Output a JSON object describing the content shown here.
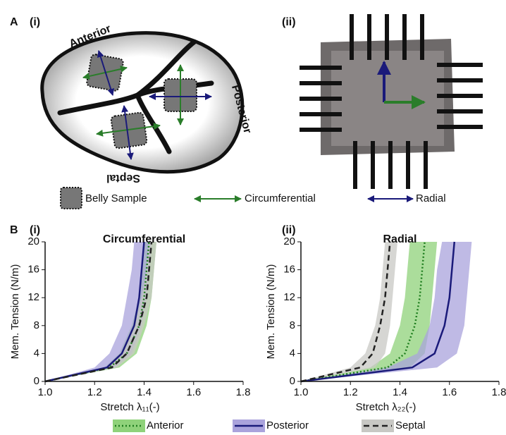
{
  "figure": {
    "panel_a": "A",
    "panel_b": "B",
    "sub_i": "(i)",
    "sub_ii": "(ii)",
    "anterior": "Anterior",
    "posterior": "Posterior",
    "septal": "Septal",
    "legend_sample": "Belly Sample",
    "legend_circ": "Circumferential",
    "legend_radial": "Radial"
  },
  "chart_data": [
    {
      "type": "line",
      "panel": "(i)",
      "title": "Circumferential",
      "xlabel": "Stretch λ₁₁(-)",
      "ylabel": "Mem. Tension (N/m)",
      "xlim": [
        1.0,
        1.8
      ],
      "xticks": [
        {
          "value": 1.0,
          "label": "1.0"
        },
        1.2,
        1.4,
        1.6,
        {
          "value": 1.8,
          "label": "1.8"
        }
      ],
      "ylim": [
        0,
        20
      ],
      "yticks": [
        0,
        4,
        8,
        12,
        16,
        20
      ],
      "series": [
        {
          "name": "Anterior",
          "color": "#1e7d1e",
          "band_color": "#8fd27a",
          "dash": "dotted",
          "values": [
            0,
            2,
            4,
            8,
            12,
            16,
            20
          ],
          "x": [
            1.0,
            1.26,
            1.33,
            1.38,
            1.4,
            1.41,
            1.42
          ],
          "band_x_min": [
            1.0,
            1.24,
            1.3,
            1.35,
            1.38,
            1.39,
            1.4
          ],
          "band_x_max": [
            1.0,
            1.3,
            1.37,
            1.41,
            1.43,
            1.44,
            1.45
          ]
        },
        {
          "name": "Posterior",
          "color": "#1a1a7a",
          "band_color": "#aaa3dc",
          "dash": "solid",
          "values": [
            0,
            2,
            4,
            8,
            12,
            16,
            20
          ],
          "x": [
            1.0,
            1.25,
            1.31,
            1.36,
            1.38,
            1.39,
            1.4
          ],
          "band_x_min": [
            1.0,
            1.2,
            1.26,
            1.31,
            1.33,
            1.35,
            1.36
          ],
          "band_x_max": [
            1.0,
            1.28,
            1.35,
            1.39,
            1.41,
            1.42,
            1.43
          ]
        },
        {
          "name": "Septal",
          "color": "#222222",
          "band_color": "#c8c8c4",
          "dash": "dashed",
          "values": [
            0,
            2,
            4,
            8,
            12,
            16,
            20
          ],
          "x": [
            1.0,
            1.27,
            1.33,
            1.38,
            1.41,
            1.42,
            1.43
          ],
          "band_x_min": [
            1.0,
            1.25,
            1.31,
            1.36,
            1.39,
            1.41,
            1.42
          ],
          "band_x_max": [
            1.0,
            1.29,
            1.36,
            1.4,
            1.43,
            1.44,
            1.45
          ]
        }
      ]
    },
    {
      "type": "line",
      "panel": "(ii)",
      "title": "Radial",
      "xlabel": "Stretch λ₂₂(-)",
      "ylabel": "Mem. Tension (N/m)",
      "xlim": [
        1.0,
        1.8
      ],
      "xticks": [
        {
          "value": 1.0,
          "label": "1.0"
        },
        1.2,
        1.4,
        1.6,
        {
          "value": 1.8,
          "label": "1.8"
        }
      ],
      "ylim": [
        0,
        20
      ],
      "yticks": [
        0,
        4,
        8,
        12,
        16,
        20
      ],
      "series": [
        {
          "name": "Anterior",
          "color": "#1e7d1e",
          "band_color": "#8fd27a",
          "dash": "dotted",
          "values": [
            0,
            2,
            4,
            8,
            12,
            16,
            20
          ],
          "x": [
            1.0,
            1.35,
            1.42,
            1.46,
            1.48,
            1.49,
            1.5
          ],
          "band_x_min": [
            1.0,
            1.28,
            1.36,
            1.4,
            1.42,
            1.43,
            1.44
          ],
          "band_x_max": [
            1.0,
            1.44,
            1.5,
            1.52,
            1.53,
            1.54,
            1.55
          ]
        },
        {
          "name": "Posterior",
          "color": "#1a1a7a",
          "band_color": "#aaa3dc",
          "dash": "solid",
          "values": [
            0,
            2,
            4,
            8,
            12,
            16,
            20
          ],
          "x": [
            1.0,
            1.45,
            1.54,
            1.58,
            1.6,
            1.61,
            1.62
          ],
          "band_x_min": [
            1.0,
            1.35,
            1.47,
            1.52,
            1.54,
            1.55,
            1.57
          ],
          "band_x_max": [
            1.0,
            1.55,
            1.63,
            1.66,
            1.67,
            1.68,
            1.69
          ]
        },
        {
          "name": "Septal",
          "color": "#222222",
          "band_color": "#c8c8c4",
          "dash": "dashed",
          "values": [
            0,
            2,
            4,
            8,
            12,
            16,
            20
          ],
          "x": [
            1.0,
            1.24,
            1.29,
            1.32,
            1.34,
            1.35,
            1.36
          ],
          "band_x_min": [
            1.0,
            1.2,
            1.26,
            1.3,
            1.32,
            1.33,
            1.34
          ],
          "band_x_max": [
            1.0,
            1.3,
            1.34,
            1.36,
            1.37,
            1.38,
            1.39
          ]
        }
      ]
    }
  ]
}
